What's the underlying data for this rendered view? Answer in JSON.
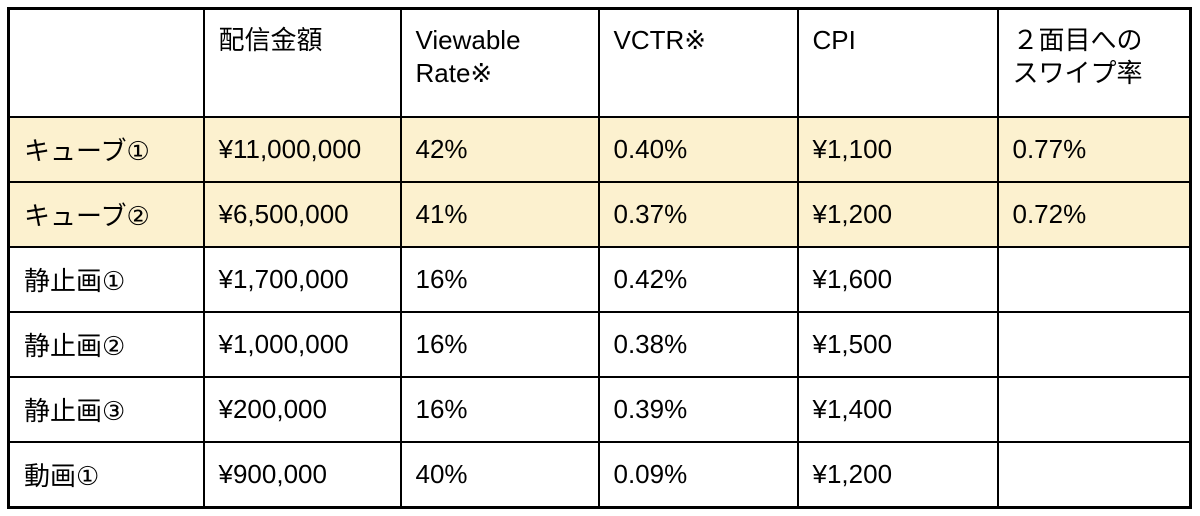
{
  "table": {
    "columns": [
      "",
      "配信金額",
      "Viewable\nRate※",
      "VCTR※",
      "CPI",
      "２面目への\nスワイプ率"
    ],
    "rows": [
      {
        "label": "キューブ①",
        "values": [
          "¥11,000,000",
          "42%",
          "0.40%",
          "¥1,100",
          "0.77%"
        ],
        "highlighted": true
      },
      {
        "label": "キューブ②",
        "values": [
          "¥6,500,000",
          "41%",
          "0.37%",
          "¥1,200",
          "0.72%"
        ],
        "highlighted": true
      },
      {
        "label": "静止画①",
        "values": [
          "¥1,700,000",
          "16%",
          "0.42%",
          "¥1,600",
          ""
        ],
        "highlighted": false
      },
      {
        "label": "静止画②",
        "values": [
          "¥1,000,000",
          "16%",
          "0.38%",
          "¥1,500",
          ""
        ],
        "highlighted": false
      },
      {
        "label": "静止画③",
        "values": [
          "¥200,000",
          "16%",
          "0.39%",
          "¥1,400",
          ""
        ],
        "highlighted": false
      },
      {
        "label": "動画①",
        "values": [
          "¥900,000",
          "40%",
          "0.09%",
          "¥1,200",
          ""
        ],
        "highlighted": false
      }
    ]
  },
  "colors": {
    "highlight_row_background": "#FCF1CF",
    "border": "#000000",
    "background": "#FFFFFF",
    "text": "#000000"
  },
  "chart_data": {
    "type": "table",
    "title": "",
    "columns": [
      "",
      "配信金額",
      "Viewable Rate※",
      "VCTR※",
      "CPI",
      "２面目へのスワイプ率"
    ],
    "rows": [
      [
        "キューブ①",
        "¥11,000,000",
        "42%",
        "0.40%",
        "¥1,100",
        "0.77%"
      ],
      [
        "キューブ②",
        "¥6,500,000",
        "41%",
        "0.37%",
        "¥1,200",
        "0.72%"
      ],
      [
        "静止画①",
        "¥1,700,000",
        "16%",
        "0.42%",
        "¥1,600",
        ""
      ],
      [
        "静止画②",
        "¥1,000,000",
        "16%",
        "0.38%",
        "¥1,500",
        ""
      ],
      [
        "静止画③",
        "¥200,000",
        "16%",
        "0.39%",
        "¥1,400",
        ""
      ],
      [
        "動画①",
        "¥900,000",
        "40%",
        "0.09%",
        "¥1,200",
        ""
      ]
    ],
    "highlighted_rows": [
      0,
      1
    ],
    "notes": "rows キューブ①/キューブ② have cream-yellow highlight; empty swipe-rate cells for non-cube rows"
  }
}
